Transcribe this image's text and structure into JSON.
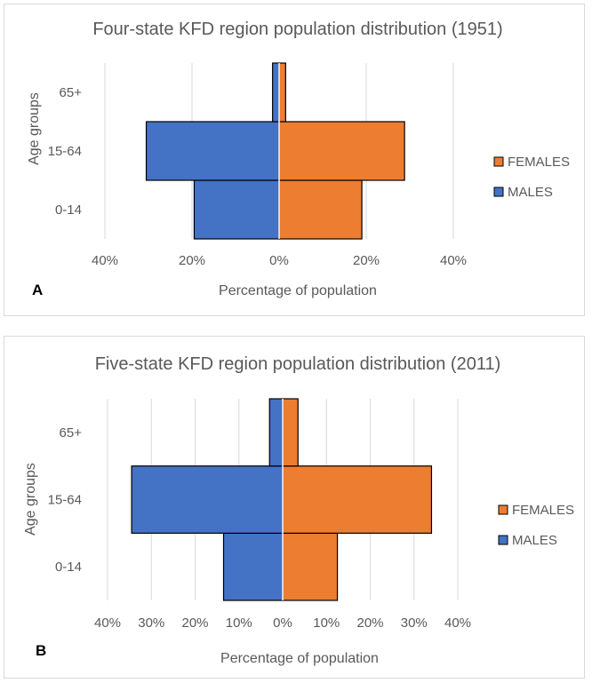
{
  "chart_data": [
    {
      "panel_label": "A",
      "type": "bar",
      "orientation": "horizontal-pyramid",
      "title": "Four-state KFD region population distribution (1951)",
      "xlabel": "Percentage of population",
      "ylabel": "Age groups",
      "categories": [
        "0-14",
        "15-64",
        "65+"
      ],
      "xlim": [
        -40,
        40
      ],
      "xticks": [
        -40,
        -20,
        0,
        20,
        40
      ],
      "xtick_labels": [
        "40%",
        "20%",
        "0%",
        "20%",
        "40%"
      ],
      "series": [
        {
          "name": "MALES",
          "color": "#4472C4",
          "values": [
            19.5,
            30.5,
            1.5
          ]
        },
        {
          "name": "FEMALES",
          "color": "#ED7D31",
          "values": [
            19.0,
            28.8,
            1.5
          ]
        }
      ],
      "legend": [
        "FEMALES",
        "MALES"
      ],
      "legend_position": "right"
    },
    {
      "panel_label": "B",
      "type": "bar",
      "orientation": "horizontal-pyramid",
      "title": "Five-state KFD region population distribution (2011)",
      "xlabel": "Percentage of population",
      "ylabel": "Age groups",
      "categories": [
        "0-14",
        "15-64",
        "65+"
      ],
      "xlim": [
        -40,
        40
      ],
      "xticks": [
        -40,
        -30,
        -20,
        -10,
        0,
        10,
        20,
        30,
        40
      ],
      "xtick_labels": [
        "40%",
        "30%",
        "20%",
        "10%",
        "0%",
        "10%",
        "20%",
        "30%",
        "40%"
      ],
      "series": [
        {
          "name": "MALES",
          "color": "#4472C4",
          "values": [
            13.5,
            34.5,
            3.0
          ]
        },
        {
          "name": "FEMALES",
          "color": "#ED7D31",
          "values": [
            12.5,
            34.0,
            3.5
          ]
        }
      ],
      "legend": [
        "FEMALES",
        "MALES"
      ],
      "legend_position": "right"
    }
  ]
}
